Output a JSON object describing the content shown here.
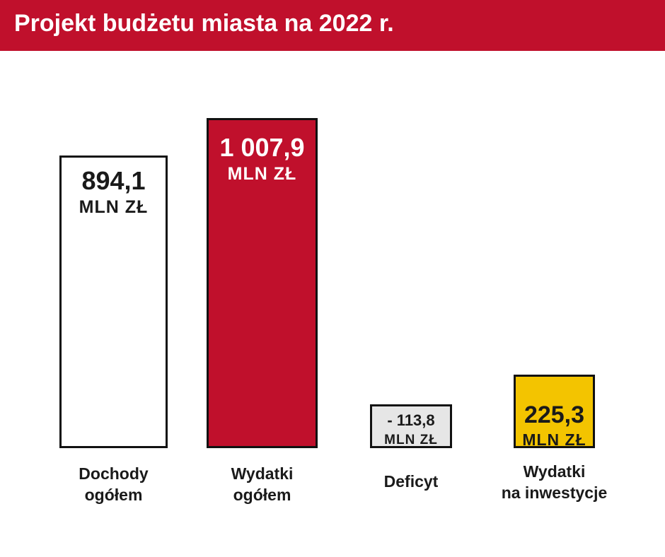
{
  "header": {
    "title": "Projekt budżetu miasta na 2022 r."
  },
  "colors": {
    "brand": "#c0102c"
  },
  "chart_data": {
    "type": "bar",
    "title": "",
    "categories": [
      "Dochody\nogółem",
      "Wydatki\nogółem",
      "Deficyt",
      "Wydatki\nna inwestycje"
    ],
    "values": [
      894.1,
      1007.9,
      -113.8,
      225.3
    ],
    "value_labels": [
      "894,1",
      "1 007,9",
      "- 113,8",
      "225,3"
    ],
    "unit": "MLN ZŁ",
    "colors": [
      "#ffffff",
      "#c0102c",
      "#e6e6e6",
      "#f3c400"
    ],
    "label_colors": [
      "#1a1a1a",
      "#ffffff",
      "#1a1a1a",
      "#1a1a1a"
    ],
    "xlabel": "",
    "ylabel": ""
  }
}
